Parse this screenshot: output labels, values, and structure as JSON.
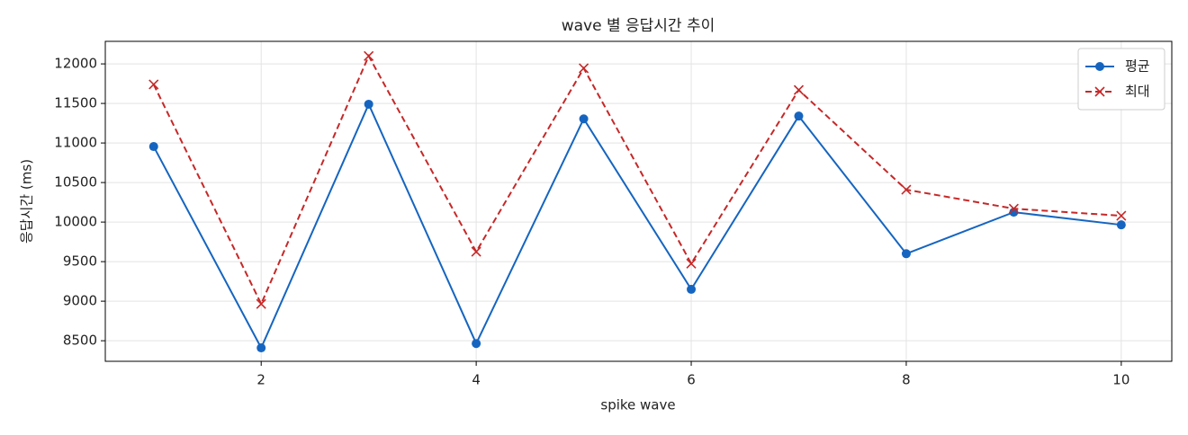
{
  "chart_data": {
    "type": "line",
    "title": "wave 별 응답시간 추이",
    "x_label": "spike wave",
    "y_label": "응답시간 (ms)",
    "x": [
      1,
      2,
      3,
      4,
      5,
      6,
      7,
      8,
      9,
      10
    ],
    "series": [
      {
        "name": "평균",
        "color": "#1565c0",
        "marker": "o",
        "linestyle": "solid",
        "values": [
          10955,
          8410,
          11490,
          8465,
          11305,
          9150,
          11340,
          9600,
          10125,
          9965
        ]
      },
      {
        "name": "최대",
        "color": "#c62828",
        "marker": "x",
        "linestyle": "dashed",
        "values": [
          11740,
          8965,
          12100,
          9625,
          11945,
          9475,
          11670,
          10410,
          10170,
          10080
        ]
      }
    ],
    "xlim": [
      0.55,
      10.47
    ],
    "ylim": [
      8240,
      12285
    ],
    "xticks": [
      2,
      4,
      6,
      8,
      10
    ],
    "yticks": [
      8500,
      9000,
      9500,
      10000,
      10500,
      11000,
      11500,
      12000
    ],
    "grid": true,
    "legend": "upper right"
  }
}
